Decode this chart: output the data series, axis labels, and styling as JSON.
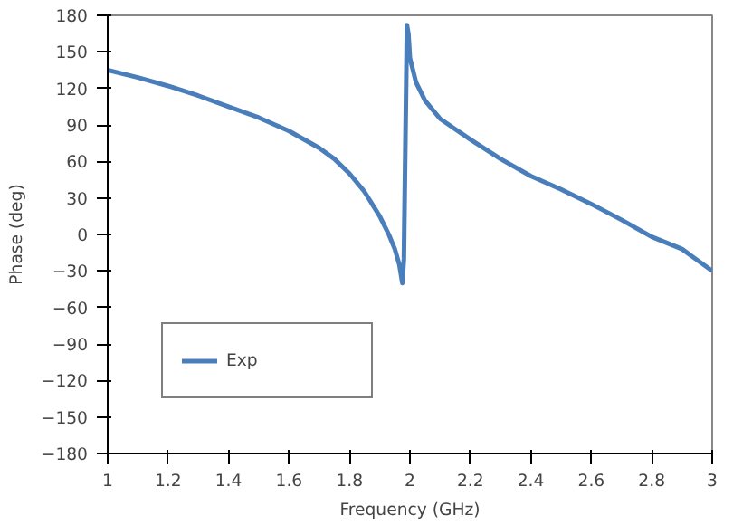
{
  "chart_data": {
    "type": "line",
    "xlabel": "Frequency (GHz)",
    "ylabel": "Phase (deg)",
    "x": [
      1.0,
      1.1,
      1.2,
      1.3,
      1.4,
      1.5,
      1.6,
      1.7,
      1.75,
      1.8,
      1.85,
      1.9,
      1.93,
      1.95,
      1.965,
      1.975,
      1.98,
      1.99,
      1.995,
      2.0,
      2.02,
      2.05,
      2.1,
      2.2,
      2.3,
      2.4,
      2.5,
      2.6,
      2.7,
      2.8,
      2.9,
      3.0
    ],
    "series": [
      {
        "name": "Exp",
        "color": "#4a7ebb",
        "values": [
          135,
          129,
          122,
          114,
          105,
          96,
          85,
          71,
          62,
          50,
          35,
          15,
          0,
          -12,
          -25,
          -40,
          -20,
          172,
          165,
          145,
          125,
          110,
          95,
          78,
          62,
          48,
          37,
          25,
          12,
          -2,
          -12,
          -30
        ]
      }
    ],
    "xlim": [
      1,
      3
    ],
    "xticks": [
      1,
      {
        "value": 1.2,
        "label": "1.2"
      },
      {
        "value": 1.4,
        "label": "1.4"
      },
      {
        "value": 1.6,
        "label": "1.6"
      },
      {
        "value": 1.8,
        "label": "1.8"
      },
      2,
      {
        "value": 2.2,
        "label": "2.2"
      },
      {
        "value": 2.4,
        "label": "2.4"
      },
      {
        "value": 2.6,
        "label": "2.6"
      },
      {
        "value": 2.8,
        "label": "2.8"
      },
      3
    ],
    "ylim": [
      -180,
      180
    ],
    "yticks": [
      -180,
      -150,
      -120,
      -90,
      -60,
      -30,
      0,
      30,
      60,
      90,
      120,
      150,
      180
    ],
    "legend": "bottom left",
    "grid": false,
    "marker": "none",
    "line_style": "solid"
  }
}
